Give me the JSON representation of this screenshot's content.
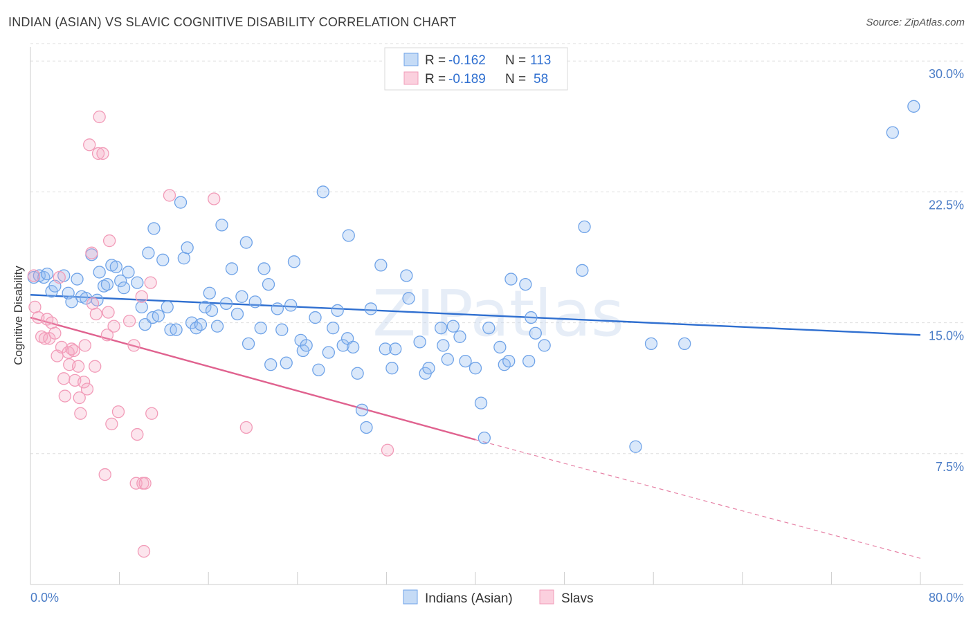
{
  "title": "INDIAN (ASIAN) VS SLAVIC COGNITIVE DISABILITY CORRELATION CHART",
  "source": "Source: ZipAtlas.com",
  "watermark": "ZIPatlas",
  "chart_data": {
    "type": "scatter",
    "xlabel": "",
    "ylabel": "Cognitive Disability",
    "xlim": [
      0,
      80
    ],
    "ylim": [
      0,
      31
    ],
    "x_tick_labels": [
      "0.0%",
      "80.0%"
    ],
    "y_ticks": [
      7.5,
      15.0,
      22.5,
      30.0
    ],
    "y_tick_labels": [
      "7.5%",
      "15.0%",
      "22.5%",
      "30.0%"
    ],
    "grid": "horizontal dashed",
    "legend_placement": "top-center",
    "legend": [
      {
        "r_label": "R = ",
        "r_value": "-0.162",
        "n_label": "N = ",
        "n_value": "113"
      },
      {
        "r_label": "R = ",
        "r_value": "-0.189",
        "n_label": "N = ",
        "n_value": "58"
      }
    ],
    "series": [
      {
        "name": "Indians (Asian)",
        "color": "#6fa3e8",
        "trend": {
          "x0": 0,
          "y0": 16.6,
          "x1": 80,
          "y1": 14.3,
          "style": "solid",
          "color": "#2f6fd0"
        },
        "points": [
          [
            0.3,
            17.6
          ],
          [
            0.8,
            17.7
          ],
          [
            1.2,
            17.6
          ],
          [
            1.5,
            17.8
          ],
          [
            1.9,
            16.8
          ],
          [
            2.2,
            17.1
          ],
          [
            3.0,
            17.7
          ],
          [
            3.4,
            16.7
          ],
          [
            3.7,
            16.2
          ],
          [
            4.2,
            17.5
          ],
          [
            4.6,
            16.5
          ],
          [
            5.0,
            16.4
          ],
          [
            5.5,
            18.9
          ],
          [
            6.0,
            16.3
          ],
          [
            6.2,
            17.9
          ],
          [
            6.6,
            17.1
          ],
          [
            6.9,
            17.2
          ],
          [
            7.3,
            18.3
          ],
          [
            7.7,
            18.2
          ],
          [
            8.1,
            17.4
          ],
          [
            8.4,
            17.0
          ],
          [
            8.8,
            17.9
          ],
          [
            9.6,
            17.3
          ],
          [
            10.0,
            15.9
          ],
          [
            10.3,
            14.9
          ],
          [
            10.6,
            19.0
          ],
          [
            11.0,
            15.3
          ],
          [
            11.1,
            20.4
          ],
          [
            11.5,
            15.4
          ],
          [
            11.9,
            18.6
          ],
          [
            12.3,
            15.9
          ],
          [
            12.6,
            14.6
          ],
          [
            13.1,
            14.6
          ],
          [
            13.5,
            21.9
          ],
          [
            13.8,
            18.7
          ],
          [
            14.1,
            19.3
          ],
          [
            14.5,
            15.0
          ],
          [
            14.9,
            14.7
          ],
          [
            15.3,
            14.9
          ],
          [
            15.7,
            15.9
          ],
          [
            16.1,
            16.7
          ],
          [
            16.3,
            15.7
          ],
          [
            16.8,
            14.8
          ],
          [
            17.2,
            20.6
          ],
          [
            17.6,
            16.1
          ],
          [
            18.1,
            18.1
          ],
          [
            18.6,
            15.5
          ],
          [
            19.0,
            16.5
          ],
          [
            19.4,
            19.6
          ],
          [
            19.6,
            13.8
          ],
          [
            20.2,
            16.2
          ],
          [
            20.7,
            14.7
          ],
          [
            21.0,
            18.1
          ],
          [
            21.4,
            17.2
          ],
          [
            21.6,
            12.6
          ],
          [
            22.2,
            15.8
          ],
          [
            22.6,
            14.6
          ],
          [
            23.0,
            12.7
          ],
          [
            23.4,
            16.0
          ],
          [
            23.7,
            18.5
          ],
          [
            24.3,
            14.0
          ],
          [
            24.5,
            13.4
          ],
          [
            24.8,
            13.7
          ],
          [
            25.6,
            15.3
          ],
          [
            25.9,
            12.3
          ],
          [
            26.3,
            22.5
          ],
          [
            26.8,
            13.3
          ],
          [
            27.2,
            14.7
          ],
          [
            27.6,
            15.7
          ],
          [
            28.1,
            13.7
          ],
          [
            28.5,
            14.1
          ],
          [
            28.6,
            20.0
          ],
          [
            29.0,
            13.6
          ],
          [
            29.4,
            12.1
          ],
          [
            29.8,
            10.0
          ],
          [
            30.2,
            9.0
          ],
          [
            30.6,
            15.8
          ],
          [
            31.5,
            18.3
          ],
          [
            31.9,
            13.5
          ],
          [
            32.5,
            12.4
          ],
          [
            32.8,
            13.5
          ],
          [
            33.8,
            17.7
          ],
          [
            34.0,
            16.4
          ],
          [
            35.0,
            13.9
          ],
          [
            35.5,
            12.1
          ],
          [
            35.8,
            12.4
          ],
          [
            36.9,
            14.7
          ],
          [
            37.1,
            13.7
          ],
          [
            37.5,
            12.9
          ],
          [
            38.0,
            14.8
          ],
          [
            38.6,
            14.2
          ],
          [
            39.1,
            12.8
          ],
          [
            40.0,
            12.4
          ],
          [
            40.5,
            10.4
          ],
          [
            40.8,
            8.4
          ],
          [
            41.2,
            14.7
          ],
          [
            42.2,
            13.6
          ],
          [
            42.6,
            12.6
          ],
          [
            43.0,
            12.8
          ],
          [
            43.2,
            17.5
          ],
          [
            44.5,
            17.2
          ],
          [
            44.8,
            12.8
          ],
          [
            45.0,
            15.3
          ],
          [
            45.4,
            14.4
          ],
          [
            46.2,
            13.7
          ],
          [
            49.6,
            18.0
          ],
          [
            49.8,
            20.5
          ],
          [
            54.4,
            7.9
          ],
          [
            55.8,
            13.8
          ],
          [
            58.8,
            13.8
          ],
          [
            77.5,
            25.9
          ],
          [
            79.4,
            27.4
          ]
        ]
      },
      {
        "name": "Slavs",
        "color": "#f29bb8",
        "trend": {
          "x0": 0,
          "y0": 15.3,
          "x1": 40,
          "y1": 8.3,
          "dash_x1": 80,
          "dash_y1": 1.5,
          "style": "solid-then-dashed",
          "color": "#e0628f"
        },
        "points": [
          [
            0.3,
            17.7
          ],
          [
            0.4,
            15.9
          ],
          [
            0.7,
            15.3
          ],
          [
            1.0,
            14.2
          ],
          [
            1.3,
            14.1
          ],
          [
            1.5,
            15.2
          ],
          [
            1.7,
            14.1
          ],
          [
            1.9,
            15.0
          ],
          [
            2.2,
            14.4
          ],
          [
            2.4,
            13.1
          ],
          [
            2.6,
            17.6
          ],
          [
            2.8,
            13.6
          ],
          [
            3.0,
            11.8
          ],
          [
            3.1,
            10.8
          ],
          [
            3.4,
            13.3
          ],
          [
            3.5,
            12.6
          ],
          [
            3.7,
            13.5
          ],
          [
            3.9,
            13.4
          ],
          [
            4.0,
            11.7
          ],
          [
            4.3,
            12.5
          ],
          [
            4.4,
            10.7
          ],
          [
            4.5,
            9.8
          ],
          [
            4.8,
            11.6
          ],
          [
            4.9,
            13.7
          ],
          [
            5.1,
            11.2
          ],
          [
            5.3,
            25.2
          ],
          [
            5.5,
            19.0
          ],
          [
            5.6,
            16.1
          ],
          [
            5.8,
            12.5
          ],
          [
            5.9,
            15.5
          ],
          [
            6.1,
            24.7
          ],
          [
            6.2,
            26.8
          ],
          [
            6.5,
            24.7
          ],
          [
            6.7,
            6.3
          ],
          [
            6.9,
            14.3
          ],
          [
            7.0,
            15.6
          ],
          [
            7.1,
            19.7
          ],
          [
            7.3,
            9.2
          ],
          [
            7.5,
            14.8
          ],
          [
            7.9,
            9.9
          ],
          [
            8.9,
            15.1
          ],
          [
            9.3,
            13.7
          ],
          [
            9.5,
            5.8
          ],
          [
            9.6,
            8.6
          ],
          [
            10.0,
            16.5
          ],
          [
            10.1,
            5.8
          ],
          [
            10.2,
            1.9
          ],
          [
            10.3,
            5.8
          ],
          [
            10.8,
            17.3
          ],
          [
            10.9,
            9.8
          ],
          [
            12.5,
            22.3
          ],
          [
            16.5,
            22.1
          ],
          [
            19.4,
            9.0
          ],
          [
            32.1,
            7.7
          ]
        ]
      }
    ]
  }
}
